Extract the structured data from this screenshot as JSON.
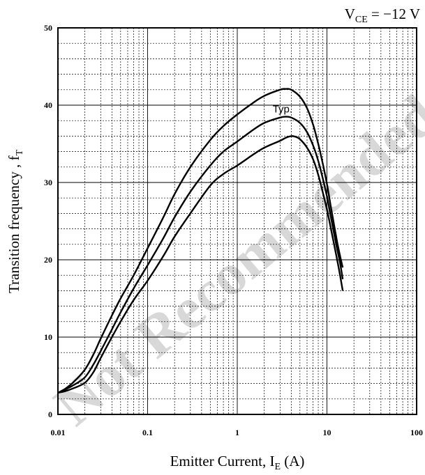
{
  "chart_data": {
    "type": "line",
    "title": "",
    "condition": {
      "prefix": "V",
      "sub": "CE",
      "suffix": " = −12 V"
    },
    "xlabel": {
      "prefix": "Emitter Current, I",
      "sub": "E",
      "suffix": " (A)"
    },
    "ylabel": {
      "prefix": "Transition frequency , f",
      "sub": "T",
      "suffix": ""
    },
    "x_scale": "log",
    "xlim": [
      0.01,
      100
    ],
    "ylim": [
      0,
      50
    ],
    "x_ticks": [
      {
        "value": 0.01,
        "label": "0.01"
      },
      {
        "value": 0.1,
        "label": "0.1"
      },
      {
        "value": 1,
        "label": "1"
      },
      {
        "value": 10,
        "label": "10"
      },
      {
        "value": 100,
        "label": "100"
      }
    ],
    "y_ticks": [
      {
        "value": 0,
        "label": "0"
      },
      {
        "value": 10,
        "label": "10"
      },
      {
        "value": 20,
        "label": "20"
      },
      {
        "value": 30,
        "label": "30"
      },
      {
        "value": 40,
        "label": "40"
      },
      {
        "value": 50,
        "label": "50"
      }
    ],
    "y_minor_step": 2,
    "grid": true,
    "curve_label": {
      "text": "Typ.",
      "x": 3.2,
      "y": 39.5
    },
    "watermark": "Not Recommended",
    "series": [
      {
        "x": [
          0.01,
          0.012,
          0.015,
          0.02,
          0.025,
          0.03,
          0.04,
          0.05,
          0.07,
          0.1,
          0.15,
          0.2,
          0.3,
          0.5,
          0.7,
          1,
          1.5,
          2,
          3,
          3.5,
          4,
          5,
          6,
          7,
          8,
          9,
          10,
          11,
          12,
          13,
          14,
          15
        ],
        "y": [
          2.8,
          3.3,
          4.2,
          5.8,
          7.8,
          9.8,
          12.8,
          15.0,
          18.0,
          21.5,
          25.5,
          28.5,
          32.0,
          35.5,
          37.3,
          38.8,
          40.3,
          41.2,
          42.0,
          42.1,
          42.0,
          41.1,
          39.6,
          37.5,
          35.0,
          32.4,
          29.8,
          27.0,
          24.5,
          22.3,
          20.5,
          19.0
        ]
      },
      {
        "x": [
          0.01,
          0.012,
          0.015,
          0.02,
          0.025,
          0.03,
          0.04,
          0.05,
          0.07,
          0.1,
          0.15,
          0.2,
          0.3,
          0.5,
          0.7,
          1,
          1.5,
          2,
          3,
          3.5,
          4,
          5,
          6,
          7,
          8,
          9,
          10,
          11,
          12,
          13,
          14,
          15
        ],
        "y": [
          2.8,
          3.2,
          3.8,
          4.8,
          6.5,
          8.2,
          11.0,
          13.2,
          16.3,
          19.3,
          22.8,
          25.5,
          28.8,
          32.2,
          34.0,
          35.3,
          36.8,
          37.7,
          38.4,
          38.5,
          38.4,
          37.7,
          36.5,
          34.8,
          32.8,
          30.5,
          28.2,
          25.7,
          23.4,
          21.4,
          19.6,
          17.5
        ]
      },
      {
        "x": [
          0.01,
          0.012,
          0.015,
          0.02,
          0.025,
          0.03,
          0.04,
          0.05,
          0.07,
          0.1,
          0.15,
          0.2,
          0.3,
          0.5,
          0.7,
          1,
          1.5,
          2,
          3,
          3.5,
          4,
          4.5,
          5,
          6,
          7,
          8,
          9,
          10,
          11,
          12,
          13,
          14,
          15
        ],
        "y": [
          2.8,
          3.0,
          3.4,
          4.1,
          5.5,
          7.3,
          10.0,
          12.0,
          14.8,
          17.3,
          20.5,
          23.0,
          26.0,
          29.6,
          31.1,
          32.2,
          33.6,
          34.5,
          35.4,
          35.8,
          36.0,
          35.9,
          35.6,
          34.5,
          33.0,
          31.0,
          28.7,
          26.5,
          24.2,
          22.0,
          20.0,
          18.0,
          16.0
        ]
      }
    ]
  }
}
